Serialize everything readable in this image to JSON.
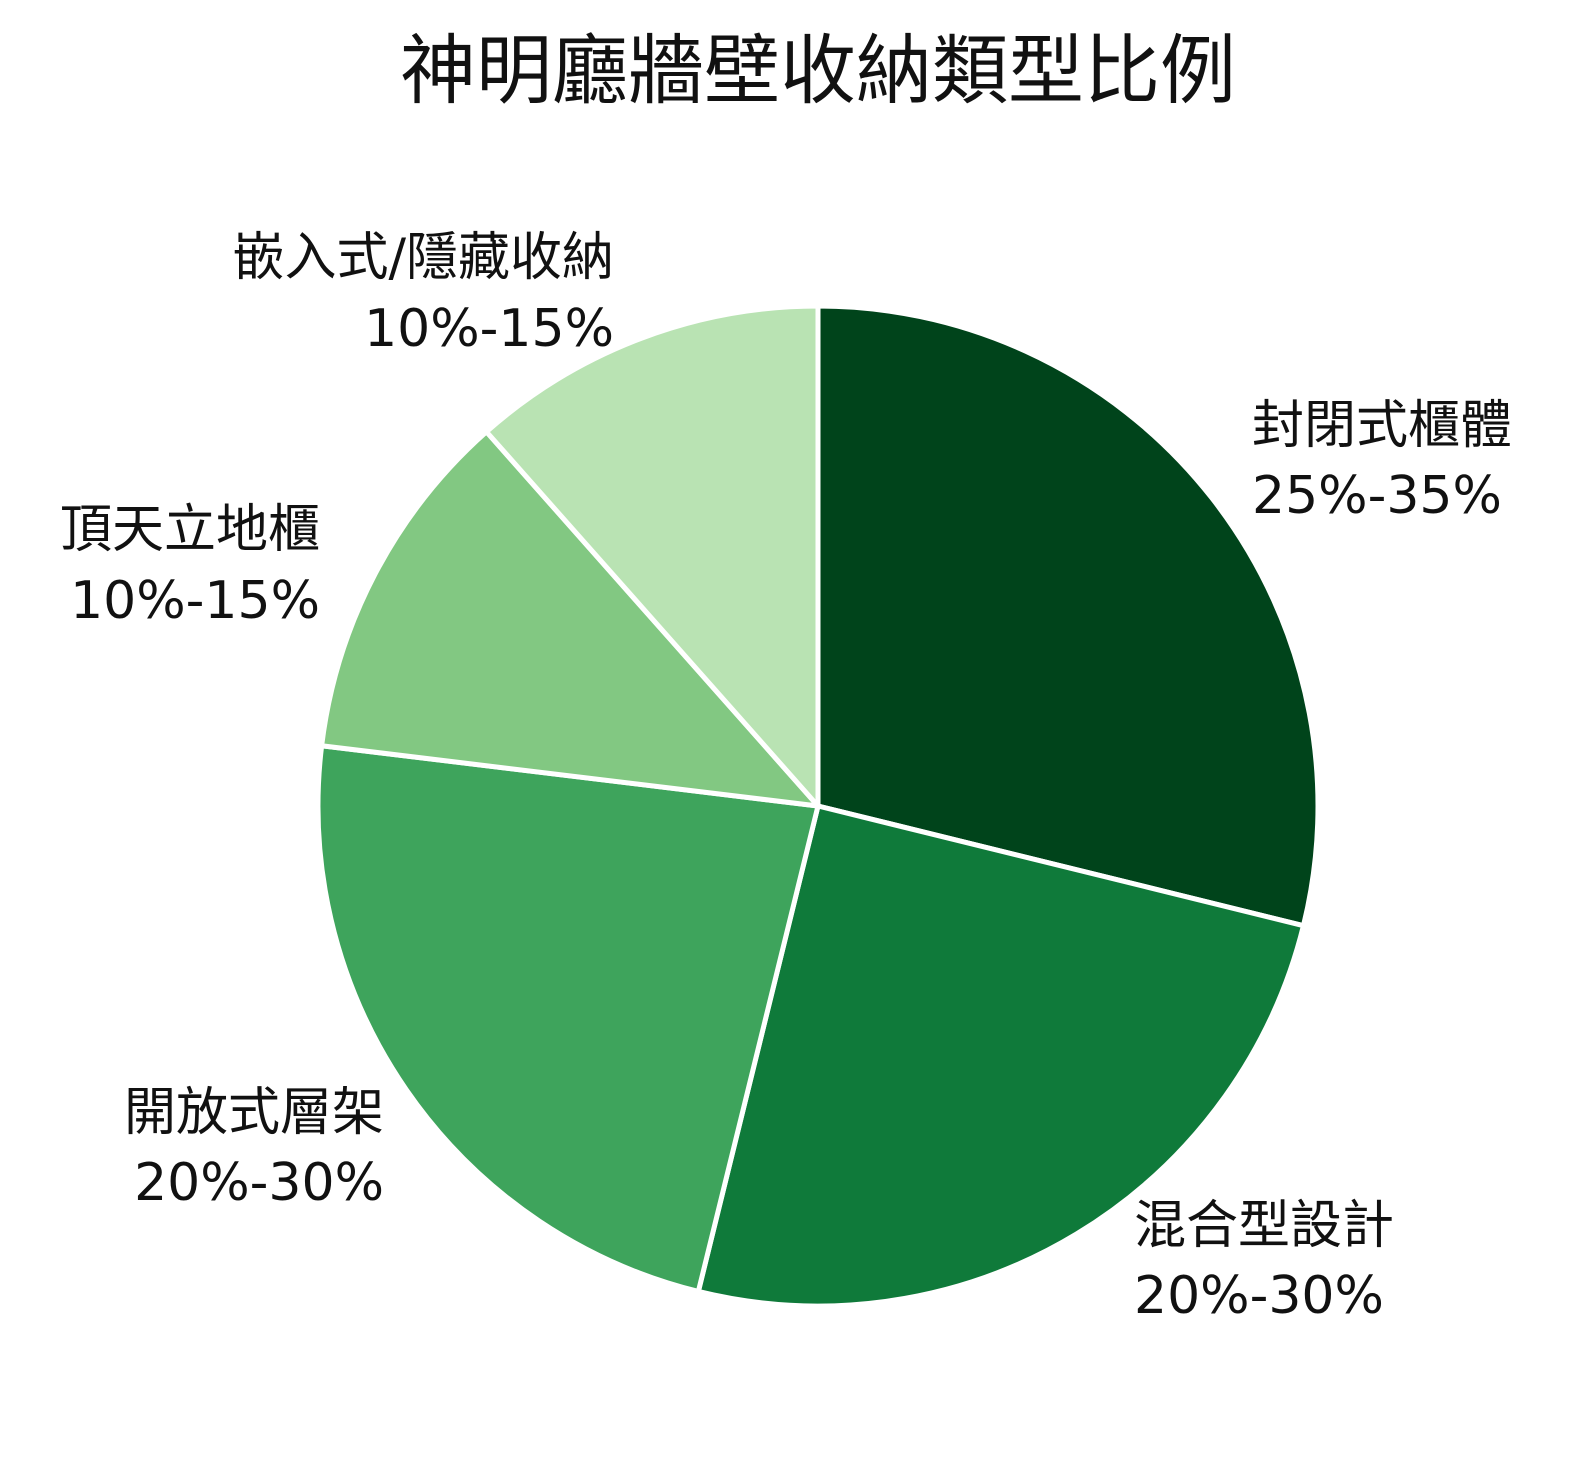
{
  "chart_data": {
    "type": "pie",
    "title": "神明廳牆壁收納類型比例",
    "slices": [
      {
        "name": "封閉式櫃體",
        "range": "25%-35%",
        "value": 30,
        "color": "#00441b"
      },
      {
        "name": "混合型設計",
        "range": "20%-30%",
        "value": 26,
        "color": "#0f7a3a"
      },
      {
        "name": "開放式層架",
        "range": "20%-30%",
        "value": 24,
        "color": "#3ea45c"
      },
      {
        "name": "頂天立地櫃",
        "range": "10%-15%",
        "value": 12,
        "color": "#82c882"
      },
      {
        "name": "嵌入式/隱藏收納",
        "range": "10%-15%",
        "value": 12,
        "color": "#b9e3b3"
      }
    ],
    "start_angle": "top (12 o'clock)",
    "direction": "clockwise",
    "legend": "none (labels beside slices)"
  }
}
